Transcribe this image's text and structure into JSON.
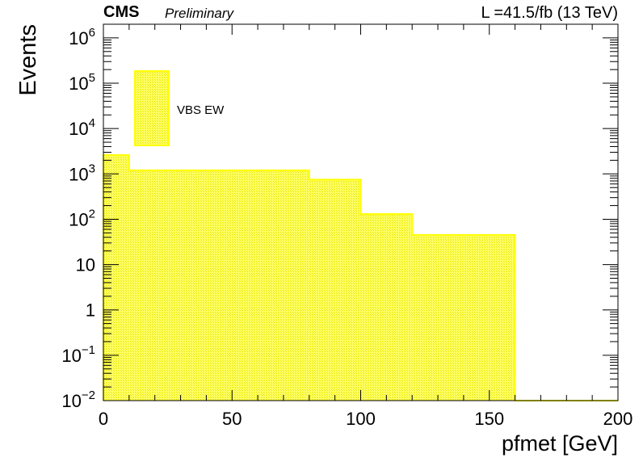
{
  "header": {
    "experiment": "CMS",
    "status": "Preliminary",
    "lumi_text": "L =41.5/fb (13 TeV)"
  },
  "colors": {
    "fill": "#ffff66",
    "edge": "#ffff00",
    "hatch": "#e6e600"
  },
  "chart_data": {
    "type": "bar",
    "xlabel": "pfmet [GeV]",
    "ylabel": "Events",
    "xlim": [
      0,
      200
    ],
    "ylim": [
      0.01,
      2000000
    ],
    "log_y": true,
    "grid": false,
    "legend_position": "top-left",
    "x_ticks": [
      {
        "value": 0,
        "label": "0"
      },
      {
        "value": 50,
        "label": "50"
      },
      {
        "value": 100,
        "label": "100"
      },
      {
        "value": 150,
        "label": "150"
      },
      {
        "value": 200,
        "label": "200"
      }
    ],
    "y_ticks": [
      {
        "value": 0.01,
        "base": "10",
        "exp": "−2"
      },
      {
        "value": 0.1,
        "base": "10",
        "exp": "−1"
      },
      {
        "value": 1,
        "base": "1",
        "exp": ""
      },
      {
        "value": 10,
        "base": "10",
        "exp": ""
      },
      {
        "value": 100,
        "base": "10",
        "exp": "2"
      },
      {
        "value": 1000,
        "base": "10",
        "exp": "3"
      },
      {
        "value": 10000,
        "base": "10",
        "exp": "4"
      },
      {
        "value": 100000,
        "base": "10",
        "exp": "5"
      },
      {
        "value": 1000000,
        "base": "10",
        "exp": "6"
      }
    ],
    "bin_edges": [
      0,
      10,
      80,
      100,
      120,
      160,
      200
    ],
    "series": [
      {
        "name": "VBS EW",
        "values": [
          2600,
          1200,
          750,
          130,
          45,
          0.01
        ]
      }
    ]
  }
}
